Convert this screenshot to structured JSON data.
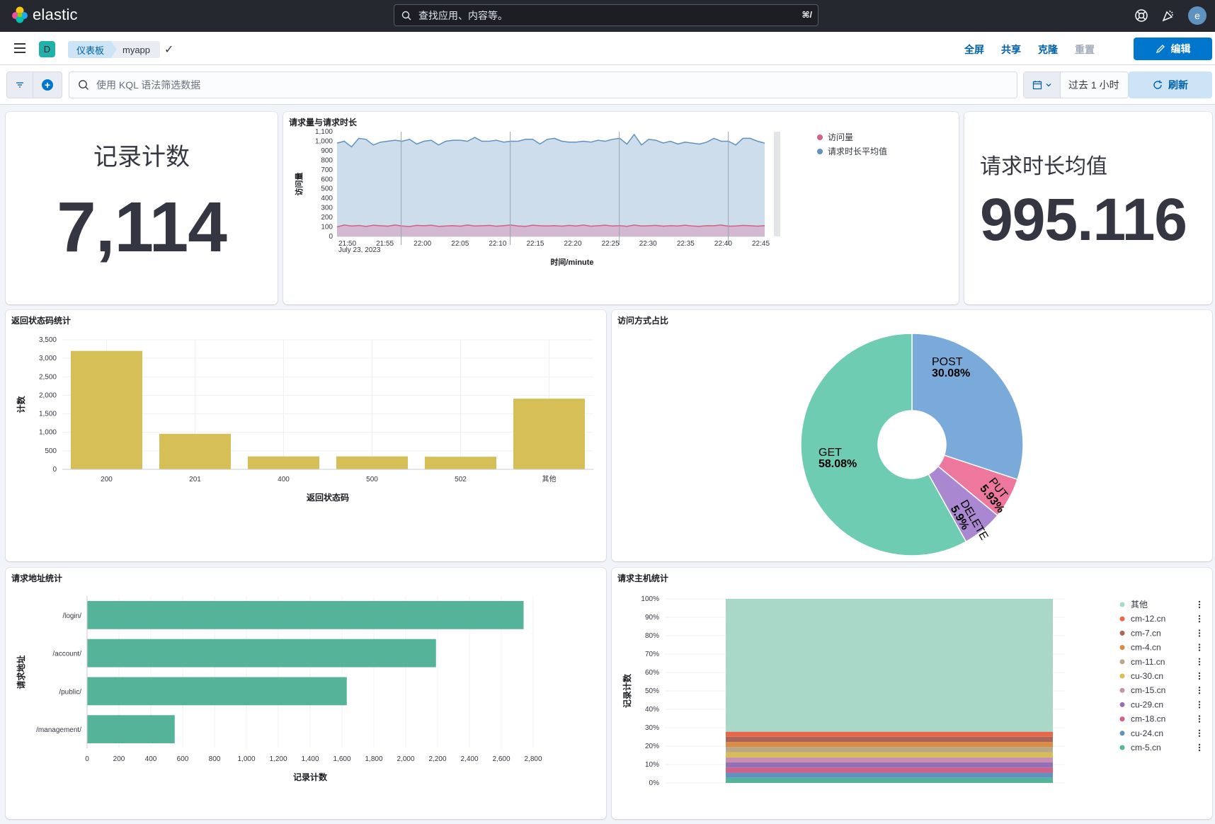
{
  "app": {
    "name": "elastic"
  },
  "search": {
    "placeholder": "查找应用、内容等。",
    "shortcut": "⌘/"
  },
  "header": {
    "space_initial": "D",
    "breadcrumbs": [
      "仪表板",
      "myapp"
    ],
    "actions": [
      "全屏",
      "共享",
      "克隆",
      "重置"
    ],
    "edit_label": "编辑",
    "avatar_initial": "e"
  },
  "query": {
    "placeholder": "使用 KQL 语法筛选数据",
    "time_range": "过去 1 小时",
    "refresh_label": "刷新"
  },
  "panels": {
    "record_count": {
      "label": "记录计数",
      "value": "7,114"
    },
    "avg_duration": {
      "label": "请求时长均值",
      "value": "995.116"
    },
    "line": {
      "title": "请求量与请求时长"
    },
    "status": {
      "title": "返回状态码统计"
    },
    "method": {
      "title": "访问方式占比"
    },
    "path": {
      "title": "请求地址统计"
    },
    "host": {
      "title": "请求主机统计"
    }
  },
  "colors": {
    "bar_status": "#d6bf57",
    "bar_path": "#54b399",
    "pie_get": "#6dccb1",
    "pie_post": "#79aad9",
    "pie_put": "#ee789d",
    "pie_delete": "#a987d1",
    "line_visits": "#6092c0",
    "line_duration": "#d36086",
    "accent": "#0077cc"
  },
  "chart_data": [
    {
      "id": "line",
      "type": "area",
      "title": "请求量与请求时长",
      "xlabel": "时间/minute",
      "ylabel": "访问量",
      "x_ticks": [
        "21:50",
        "21:55",
        "22:00",
        "22:05",
        "22:10",
        "22:15",
        "22:20",
        "22:25",
        "22:30",
        "22:35",
        "22:40",
        "22:45"
      ],
      "x_subtitle": "July 23, 2023",
      "y_ticks": [
        "0",
        "100",
        "200",
        "300",
        "400",
        "500",
        "600",
        "700",
        "800",
        "900",
        "1,000",
        "1,100"
      ],
      "ylim": [
        0,
        1100
      ],
      "series": [
        {
          "name": "请求时长平均值",
          "color": "#6092c0",
          "values": [
            980,
            1000,
            940,
            1030,
            1020,
            960,
            990,
            1000,
            1010,
            1000,
            1020,
            970,
            1000,
            1010,
            960,
            1000,
            1010,
            1010,
            1000,
            1040,
            1000,
            1000,
            1010,
            990,
            1000,
            1000,
            1020,
            1020,
            970,
            1020,
            1030,
            1000,
            990,
            990,
            1000,
            990,
            1010,
            1000,
            1020,
            1030,
            970,
            1070,
            960,
            1020,
            1010,
            980,
            1000,
            970,
            990,
            980,
            970,
            990,
            1030,
            1000,
            1000,
            960,
            1030,
            1030,
            1000,
            980
          ]
        },
        {
          "name": "访问量",
          "color": "#d36086",
          "values": [
            100,
            120,
            110,
            115,
            105,
            118,
            112,
            108,
            120,
            110,
            104,
            116,
            112,
            118,
            106,
            110,
            114,
            108,
            120,
            110,
            112,
            116,
            108,
            114,
            120,
            110,
            106,
            118,
            112,
            110,
            114,
            108,
            116,
            110,
            120,
            108,
            112,
            118,
            110,
            114,
            106,
            120,
            110,
            112,
            116,
            108,
            114,
            110,
            118,
            110,
            106,
            114,
            112,
            120,
            108,
            110,
            116,
            112,
            108,
            114
          ]
        }
      ],
      "legend": [
        "访问量",
        "请求时长平均值"
      ]
    },
    {
      "id": "status",
      "type": "bar",
      "title": "返回状态码统计",
      "categories": [
        "200",
        "201",
        "400",
        "500",
        "502",
        "其他"
      ],
      "values": [
        3200,
        960,
        350,
        350,
        340,
        1910
      ],
      "xlabel": "返回状态码",
      "ylabel": "计数",
      "ylim": [
        0,
        3500
      ],
      "y_ticks": [
        "0",
        "500",
        "1,000",
        "1,500",
        "2,000",
        "2,500",
        "3,000",
        "3,500"
      ]
    },
    {
      "id": "method",
      "type": "pie",
      "title": "访问方式占比",
      "slices": [
        {
          "label": "POST",
          "value": 30.08,
          "text": "30.08%"
        },
        {
          "label": "PUT",
          "value": 5.93,
          "text": "5.93%"
        },
        {
          "label": "DELETE",
          "value": 5.9,
          "text": "5.9%"
        },
        {
          "label": "GET",
          "value": 58.08,
          "text": "58.08%"
        }
      ]
    },
    {
      "id": "path",
      "type": "bar",
      "orientation": "horizontal",
      "title": "请求地址统计",
      "categories": [
        "/login/",
        "/account/",
        "/public/",
        "/management/"
      ],
      "values": [
        2740,
        2190,
        1630,
        550
      ],
      "xlabel": "记录计数",
      "ylabel": "请求地址",
      "xlim": [
        0,
        2800
      ],
      "x_ticks": [
        "0",
        "200",
        "400",
        "600",
        "800",
        "1,000",
        "1,200",
        "1,400",
        "1,600",
        "1,800",
        "2,000",
        "2,200",
        "2,400",
        "2,600",
        "2,800"
      ]
    },
    {
      "id": "host",
      "type": "bar",
      "stacked": "percent",
      "title": "请求主机统计",
      "ylabel": "记录计数",
      "y_ticks": [
        "0%",
        "10%",
        "20%",
        "30%",
        "40%",
        "50%",
        "60%",
        "70%",
        "80%",
        "90%",
        "100%"
      ],
      "series": [
        {
          "name": "cm-5.cn",
          "value": 2.7,
          "color": "#54b399"
        },
        {
          "name": "cu-24.cn",
          "value": 2.7,
          "color": "#6092c0"
        },
        {
          "name": "cm-18.cn",
          "value": 2.7,
          "color": "#d36086"
        },
        {
          "name": "cu-29.cn",
          "value": 2.7,
          "color": "#9170b8"
        },
        {
          "name": "cm-15.cn",
          "value": 2.7,
          "color": "#ca8eae"
        },
        {
          "name": "cu-30.cn",
          "value": 2.7,
          "color": "#d6bf57"
        },
        {
          "name": "cm-11.cn",
          "value": 2.7,
          "color": "#b9a888"
        },
        {
          "name": "cm-4.cn",
          "value": 2.7,
          "color": "#da8b45"
        },
        {
          "name": "cm-7.cn",
          "value": 2.7,
          "color": "#aa6556"
        },
        {
          "name": "cm-12.cn",
          "value": 2.7,
          "color": "#e7664c"
        },
        {
          "name": "其他",
          "value": 70,
          "color": "#a9d8c8"
        }
      ],
      "legend": [
        "其他",
        "cm-12.cn",
        "cm-7.cn",
        "cm-4.cn",
        "cm-11.cn",
        "cu-30.cn",
        "cm-15.cn",
        "cu-29.cn",
        "cm-18.cn",
        "cu-24.cn",
        "cm-5.cn"
      ]
    }
  ]
}
